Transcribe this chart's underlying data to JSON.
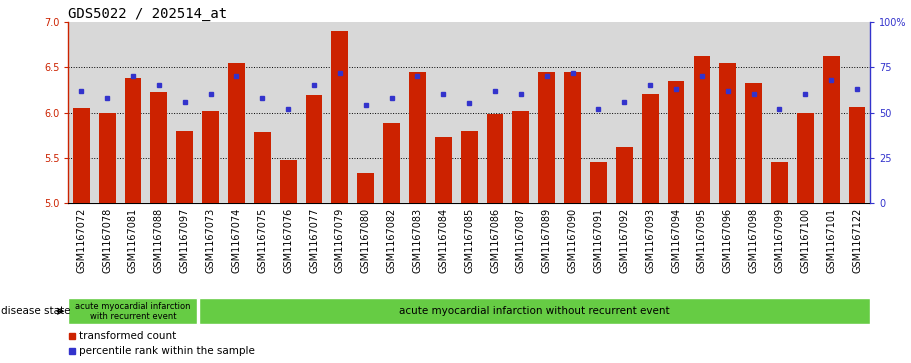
{
  "title": "GDS5022 / 202514_at",
  "samples": [
    "GSM1167072",
    "GSM1167078",
    "GSM1167081",
    "GSM1167088",
    "GSM1167097",
    "GSM1167073",
    "GSM1167074",
    "GSM1167075",
    "GSM1167076",
    "GSM1167077",
    "GSM1167079",
    "GSM1167080",
    "GSM1167082",
    "GSM1167083",
    "GSM1167084",
    "GSM1167085",
    "GSM1167086",
    "GSM1167087",
    "GSM1167089",
    "GSM1167090",
    "GSM1167091",
    "GSM1167092",
    "GSM1167093",
    "GSM1167094",
    "GSM1167095",
    "GSM1167096",
    "GSM1167098",
    "GSM1167099",
    "GSM1167100",
    "GSM1167101",
    "GSM1167122"
  ],
  "red_values": [
    6.05,
    5.99,
    6.38,
    6.23,
    5.8,
    6.02,
    6.55,
    5.78,
    5.48,
    6.19,
    6.9,
    5.33,
    5.88,
    6.45,
    5.73,
    5.8,
    5.98,
    6.02,
    6.45,
    6.45,
    5.45,
    5.62,
    6.2,
    6.35,
    6.62,
    6.55,
    6.33,
    5.45,
    6.0,
    6.62,
    6.06
  ],
  "blue_values": [
    62,
    58,
    70,
    65,
    56,
    60,
    70,
    58,
    52,
    65,
    72,
    54,
    58,
    70,
    60,
    55,
    62,
    60,
    70,
    72,
    52,
    56,
    65,
    63,
    70,
    62,
    60,
    52,
    60,
    68,
    63
  ],
  "group1_count": 5,
  "group1_label": "acute myocardial infarction\nwith recurrent event",
  "group2_label": "acute myocardial infarction without recurrent event",
  "y_min": 5.0,
  "y_max": 7.0,
  "y_ticks": [
    5.0,
    5.5,
    6.0,
    6.5,
    7.0
  ],
  "right_y_ticks": [
    0,
    25,
    50,
    75,
    100
  ],
  "bar_color": "#cc2200",
  "dot_color": "#3333cc",
  "bg_color": "#d8d8d8",
  "group_bg": "#66cc44",
  "left_axis_color": "#cc2200",
  "right_axis_color": "#3333cc",
  "title_fontsize": 10,
  "tick_fontsize": 7,
  "bar_width": 0.65
}
